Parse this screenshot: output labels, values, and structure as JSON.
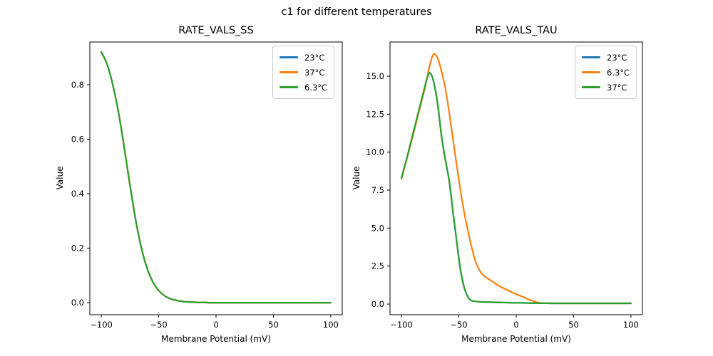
{
  "figure": {
    "title": "c1 for different temperatures",
    "background_color": "#ffffff",
    "text_color": "#000000"
  },
  "chart_data": [
    {
      "type": "line",
      "title": "RATE_VALS_SS",
      "xlabel": "Membrane Potential (mV)",
      "ylabel": "Value",
      "xlim": [
        -110,
        110
      ],
      "ylim": [
        -0.044,
        0.957
      ],
      "grid": false,
      "legend_position": "upper-right",
      "xticks": {
        "values": [
          -100,
          -50,
          0,
          50,
          100
        ],
        "labels": [
          "−100",
          "−50",
          "0",
          "50",
          "100"
        ]
      },
      "yticks": {
        "values": [
          0.0,
          0.2,
          0.4,
          0.6,
          0.8
        ],
        "labels": [
          "0.0",
          "0.2",
          "0.4",
          "0.6",
          "0.8"
        ]
      },
      "note": "All three temperature curves overlap exactly; only the last-drawn green 6.3°C curve is visible.",
      "series": [
        {
          "name": "23°C",
          "color": "#1f77b4",
          "x": [
            -100,
            -95,
            -90,
            -85,
            -80,
            -75,
            -70,
            -65,
            -60,
            -55,
            -50,
            -45,
            -40,
            -35,
            -30,
            -25,
            -20,
            -15,
            -10,
            -5,
            0,
            10,
            20,
            30,
            40,
            50,
            60,
            70,
            80,
            90,
            100
          ],
          "y": [
            0.92,
            0.876,
            0.8,
            0.698,
            0.569,
            0.431,
            0.303,
            0.2,
            0.125,
            0.076,
            0.045,
            0.026,
            0.015,
            0.009,
            0.005,
            0.003,
            0.002,
            0.001,
            0.001,
            0.0,
            0.0,
            0.0,
            0.0,
            0.0,
            0.0,
            0.0,
            0.0,
            0.0,
            0.0,
            0.0,
            0.0
          ]
        },
        {
          "name": "37°C",
          "color": "#ff7f0e",
          "x": [
            -100,
            -95,
            -90,
            -85,
            -80,
            -75,
            -70,
            -65,
            -60,
            -55,
            -50,
            -45,
            -40,
            -35,
            -30,
            -25,
            -20,
            -15,
            -10,
            -5,
            0,
            10,
            20,
            30,
            40,
            50,
            60,
            70,
            80,
            90,
            100
          ],
          "y": [
            0.92,
            0.876,
            0.8,
            0.698,
            0.569,
            0.431,
            0.303,
            0.2,
            0.125,
            0.076,
            0.045,
            0.026,
            0.015,
            0.009,
            0.005,
            0.003,
            0.002,
            0.001,
            0.001,
            0.0,
            0.0,
            0.0,
            0.0,
            0.0,
            0.0,
            0.0,
            0.0,
            0.0,
            0.0,
            0.0,
            0.0
          ]
        },
        {
          "name": "6.3°C",
          "color": "#2ca02c",
          "x": [
            -100,
            -95,
            -90,
            -85,
            -80,
            -75,
            -70,
            -65,
            -60,
            -55,
            -50,
            -45,
            -40,
            -35,
            -30,
            -25,
            -20,
            -15,
            -10,
            -5,
            0,
            10,
            20,
            30,
            40,
            50,
            60,
            70,
            80,
            90,
            100
          ],
          "y": [
            0.92,
            0.876,
            0.8,
            0.698,
            0.569,
            0.431,
            0.303,
            0.2,
            0.125,
            0.076,
            0.045,
            0.026,
            0.015,
            0.009,
            0.005,
            0.003,
            0.002,
            0.001,
            0.001,
            0.0,
            0.0,
            0.0,
            0.0,
            0.0,
            0.0,
            0.0,
            0.0,
            0.0,
            0.0,
            0.0,
            0.0
          ]
        }
      ]
    },
    {
      "type": "line",
      "title": "RATE_VALS_TAU",
      "xlabel": "Membrane Potential (mV)",
      "ylabel": "Value",
      "xlim": [
        -110,
        110
      ],
      "ylim": [
        -0.7,
        17.25
      ],
      "grid": false,
      "legend_position": "upper-right",
      "xticks": {
        "values": [
          -100,
          -50,
          0,
          50,
          100
        ],
        "labels": [
          "−100",
          "−50",
          "0",
          "50",
          "100"
        ]
      },
      "yticks": {
        "values": [
          0.0,
          2.5,
          5.0,
          7.5,
          10.0,
          12.5,
          15.0
        ],
        "labels": [
          "0.0",
          "2.5",
          "5.0",
          "7.5",
          "10.0",
          "12.5",
          "15.0"
        ]
      },
      "note": "Blue 23°C curve coincides with the green 37°C curve and is hidden beneath it; orange 6.3°C peaks at ~16.5 near −72 mV, green peaks at ~15.2 near −76 mV.",
      "series": [
        {
          "name": "23°C",
          "color": "#1f77b4",
          "x": [
            -100,
            -95,
            -90,
            -85,
            -80,
            -78,
            -76,
            -74,
            -72,
            -70,
            -68,
            -65,
            -62,
            -60,
            -58,
            -55,
            -52,
            -50,
            -48,
            -45,
            -42,
            -40,
            -38,
            -35,
            -30,
            -25,
            -20,
            -15,
            -10,
            -5,
            0,
            5,
            10,
            15,
            20,
            30,
            40,
            50,
            60,
            70,
            80,
            90,
            100
          ],
          "y": [
            8.3,
            9.7,
            11.2,
            12.7,
            14.2,
            14.8,
            15.2,
            15.1,
            14.65,
            13.9,
            12.9,
            11.0,
            9.6,
            8.8,
            7.9,
            6.0,
            4.2,
            3.0,
            2.0,
            1.0,
            0.45,
            0.28,
            0.2,
            0.17,
            0.14,
            0.13,
            0.12,
            0.11,
            0.1,
            0.09,
            0.08,
            0.08,
            0.07,
            0.06,
            0.06,
            0.05,
            0.05,
            0.05,
            0.05,
            0.05,
            0.05,
            0.05,
            0.05
          ]
        },
        {
          "name": "6.3°C",
          "color": "#ff7f0e",
          "x": [
            -100,
            -95,
            -90,
            -85,
            -80,
            -78,
            -76,
            -74,
            -72,
            -70,
            -68,
            -65,
            -62,
            -60,
            -58,
            -55,
            -52,
            -50,
            -48,
            -45,
            -42,
            -40,
            -38,
            -35,
            -30,
            -25,
            -20,
            -15,
            -10,
            -5,
            0,
            5,
            10,
            15,
            20,
            30,
            40,
            50,
            60,
            70,
            80,
            90,
            100
          ],
          "y": [
            8.25,
            9.65,
            11.1,
            12.6,
            14.1,
            14.8,
            15.5,
            16.1,
            16.45,
            16.4,
            16.1,
            15.3,
            14.3,
            13.4,
            12.4,
            10.8,
            9.2,
            8.2,
            7.2,
            5.9,
            4.8,
            4.1,
            3.5,
            2.7,
            2.0,
            1.7,
            1.45,
            1.2,
            1.0,
            0.82,
            0.65,
            0.5,
            0.33,
            0.2,
            0.08,
            0.05,
            0.05,
            0.05,
            0.05,
            0.05,
            0.05,
            0.05,
            0.05
          ]
        },
        {
          "name": "37°C",
          "color": "#2ca02c",
          "x": [
            -100,
            -95,
            -90,
            -85,
            -80,
            -78,
            -76,
            -74,
            -72,
            -70,
            -68,
            -65,
            -62,
            -60,
            -58,
            -55,
            -52,
            -50,
            -48,
            -45,
            -42,
            -40,
            -38,
            -35,
            -30,
            -25,
            -20,
            -15,
            -10,
            -5,
            0,
            5,
            10,
            15,
            20,
            30,
            40,
            50,
            60,
            70,
            80,
            90,
            100
          ],
          "y": [
            8.3,
            9.7,
            11.2,
            12.7,
            14.2,
            14.8,
            15.2,
            15.1,
            14.65,
            13.9,
            12.9,
            11.0,
            9.6,
            8.8,
            7.9,
            6.0,
            4.2,
            3.0,
            2.0,
            1.0,
            0.45,
            0.28,
            0.2,
            0.17,
            0.14,
            0.13,
            0.12,
            0.11,
            0.1,
            0.09,
            0.08,
            0.08,
            0.07,
            0.06,
            0.06,
            0.05,
            0.05,
            0.05,
            0.05,
            0.05,
            0.05,
            0.05,
            0.05
          ]
        }
      ]
    }
  ]
}
